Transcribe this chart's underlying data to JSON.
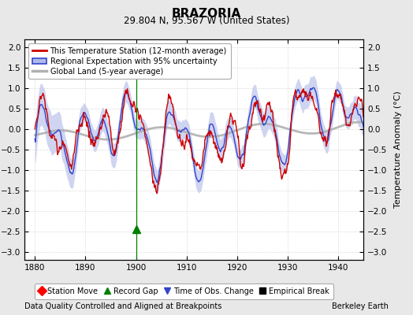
{
  "title": "BRAZORIA",
  "subtitle": "29.804 N, 95.567 W (United States)",
  "xlabel_note": "Data Quality Controlled and Aligned at Breakpoints",
  "xlabel_note_right": "Berkeley Earth",
  "ylabel": "Temperature Anomaly (°C)",
  "xlim": [
    1878,
    1945
  ],
  "ylim": [
    -3.2,
    2.2
  ],
  "yticks": [
    -3,
    -2.5,
    -2,
    -1.5,
    -1,
    -0.5,
    0,
    0.5,
    1,
    1.5,
    2
  ],
  "xticks": [
    1880,
    1890,
    1900,
    1910,
    1920,
    1930,
    1940
  ],
  "station_color": "#cc0000",
  "regional_color": "#3344cc",
  "regional_fill_color": "#b0b8e8",
  "global_color": "#b0b0b0",
  "record_gap_x": 1900,
  "background_color": "#e8e8e8",
  "plot_bg_color": "#ffffff",
  "seed": 17
}
